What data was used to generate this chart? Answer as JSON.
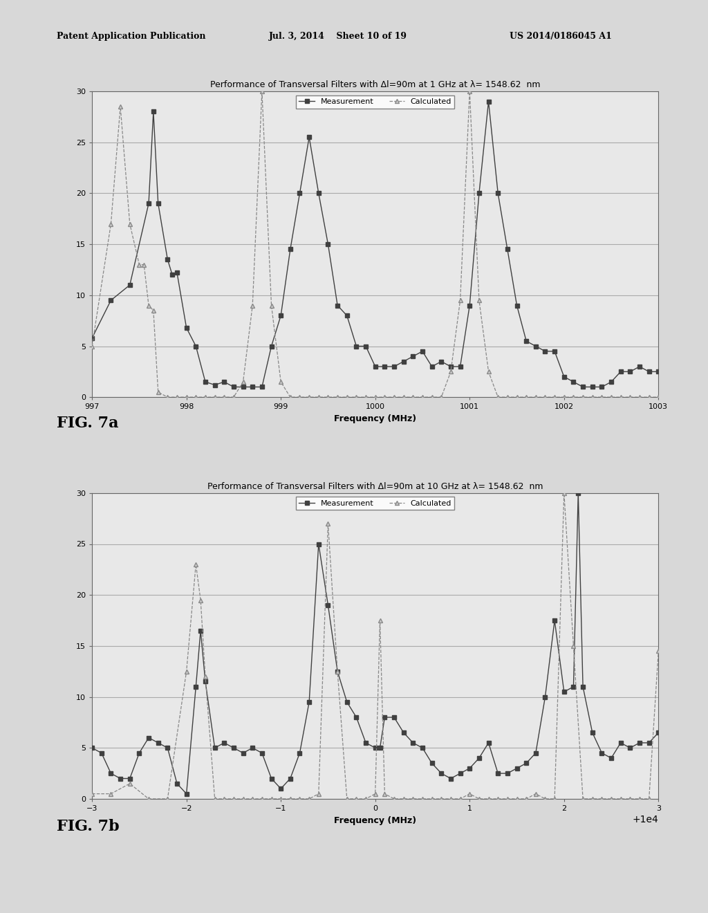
{
  "fig7a": {
    "title": "Performance of Transversal Filters with Δl=90m at 1 GHz at λ= 1548.62  nm",
    "xlabel": "Frequency (MHz)",
    "ylabel": "",
    "xlim": [
      997,
      1003
    ],
    "ylim": [
      0.0,
      30.0
    ],
    "xticks": [
      997,
      998,
      999,
      1000,
      1001,
      1002,
      1003
    ],
    "yticks": [
      0.0,
      5.0,
      10.0,
      15.0,
      20.0,
      25.0,
      30.0
    ],
    "meas_x": [
      997.0,
      997.2,
      997.4,
      997.6,
      997.65,
      997.7,
      997.8,
      997.85,
      997.9,
      998.0,
      998.1,
      998.2,
      998.3,
      998.4,
      998.5,
      998.6,
      998.7,
      998.8,
      998.9,
      999.0,
      999.1,
      999.2,
      999.3,
      999.4,
      999.5,
      999.6,
      999.7,
      999.8,
      999.9,
      1000.0,
      1000.1,
      1000.2,
      1000.3,
      1000.4,
      1000.5,
      1000.6,
      1000.7,
      1000.8,
      1000.9,
      1001.0,
      1001.1,
      1001.2,
      1001.3,
      1001.4,
      1001.5,
      1001.6,
      1001.7,
      1001.8,
      1001.9,
      1002.0,
      1002.1,
      1002.2,
      1002.3,
      1002.4,
      1002.5,
      1002.6,
      1002.7,
      1002.8,
      1002.9,
      1003.0
    ],
    "meas_y": [
      5.8,
      9.5,
      11.0,
      19.0,
      28.0,
      19.0,
      13.5,
      12.0,
      12.2,
      6.8,
      5.0,
      1.5,
      1.2,
      1.5,
      1.0,
      1.0,
      1.0,
      1.0,
      5.0,
      8.0,
      14.5,
      20.0,
      25.5,
      20.0,
      15.0,
      9.0,
      8.0,
      5.0,
      5.0,
      3.0,
      3.0,
      3.0,
      3.5,
      4.0,
      4.5,
      3.0,
      3.5,
      3.0,
      3.0,
      9.0,
      20.0,
      29.0,
      20.0,
      14.5,
      9.0,
      5.5,
      5.0,
      4.5,
      4.5,
      2.0,
      1.5,
      1.0,
      1.0,
      1.0,
      1.5,
      2.5,
      2.5,
      3.0,
      2.5,
      2.5
    ],
    "calc_x": [
      997.0,
      997.2,
      997.3,
      997.4,
      997.5,
      997.55,
      997.6,
      997.65,
      997.7,
      997.8,
      997.9,
      998.0,
      998.1,
      998.2,
      998.3,
      998.4,
      998.5,
      998.6,
      998.7,
      998.8,
      998.9,
      999.0,
      999.1,
      999.2,
      999.3,
      999.4,
      999.5,
      999.6,
      999.7,
      999.8,
      999.9,
      1000.0,
      1000.1,
      1000.2,
      1000.3,
      1000.4,
      1000.5,
      1000.6,
      1000.7,
      1000.8,
      1000.9,
      1001.0,
      1001.1,
      1001.2,
      1001.3,
      1001.4,
      1001.5,
      1001.6,
      1001.7,
      1001.8,
      1001.9,
      1002.0,
      1002.1,
      1002.2,
      1002.3,
      1002.4,
      1002.5,
      1002.6,
      1002.7,
      1002.8,
      1002.9,
      1003.0
    ],
    "calc_y": [
      5.0,
      17.0,
      28.5,
      17.0,
      13.0,
      13.0,
      9.0,
      8.5,
      0.5,
      0.0,
      0.0,
      0.0,
      0.0,
      0.0,
      0.0,
      0.0,
      0.0,
      1.5,
      9.0,
      30.0,
      9.0,
      1.5,
      0.0,
      0.0,
      0.0,
      0.0,
      0.0,
      0.0,
      0.0,
      0.0,
      0.0,
      0.0,
      0.0,
      0.0,
      0.0,
      0.0,
      0.0,
      0.0,
      0.0,
      2.5,
      9.5,
      30.0,
      9.5,
      2.5,
      0.0,
      0.0,
      0.0,
      0.0,
      0.0,
      0.0,
      0.0,
      0.0,
      0.0,
      0.0,
      0.0,
      0.0,
      0.0,
      0.0,
      0.0,
      0.0,
      0.0,
      0.0
    ]
  },
  "fig7b": {
    "title": "Performance of Transversal Filters with Δl=90m at 10 GHz at λ= 1548.62  nm",
    "xlabel": "Frequency (MHz)",
    "ylabel": "",
    "xlim": [
      9997,
      10003
    ],
    "ylim": [
      0.0,
      30.0
    ],
    "xticks": [
      9997,
      9998,
      9999,
      10000,
      10001,
      10002,
      10003
    ],
    "yticks": [
      0.0,
      5.0,
      10.0,
      15.0,
      20.0,
      25.0,
      30.0
    ],
    "meas_x": [
      9997.0,
      9997.1,
      9997.2,
      9997.3,
      9997.4,
      9997.5,
      9997.6,
      9997.7,
      9997.8,
      9997.9,
      9998.0,
      9998.1,
      9998.15,
      9998.2,
      9998.3,
      9998.4,
      9998.5,
      9998.6,
      9998.7,
      9998.8,
      9998.9,
      9999.0,
      9999.1,
      9999.2,
      9999.3,
      9999.4,
      9999.5,
      9999.6,
      9999.7,
      9999.8,
      9999.9,
      10000.0,
      10000.05,
      10000.1,
      10000.2,
      10000.3,
      10000.4,
      10000.5,
      10000.6,
      10000.7,
      10000.8,
      10000.9,
      10001.0,
      10001.1,
      10001.2,
      10001.3,
      10001.4,
      10001.5,
      10001.6,
      10001.7,
      10001.8,
      10001.9,
      10002.0,
      10002.1,
      10002.15,
      10002.2,
      10002.3,
      10002.4,
      10002.5,
      10002.6,
      10002.7,
      10002.8,
      10002.9,
      10003.0
    ],
    "meas_y": [
      5.0,
      4.5,
      2.5,
      2.0,
      2.0,
      4.5,
      6.0,
      5.5,
      5.0,
      1.5,
      0.5,
      11.0,
      16.5,
      11.5,
      5.0,
      5.5,
      5.0,
      4.5,
      5.0,
      4.5,
      2.0,
      1.0,
      2.0,
      4.5,
      9.5,
      25.0,
      19.0,
      12.5,
      9.5,
      8.0,
      5.5,
      5.0,
      5.0,
      8.0,
      8.0,
      6.5,
      5.5,
      5.0,
      3.5,
      2.5,
      2.0,
      2.5,
      3.0,
      4.0,
      5.5,
      2.5,
      2.5,
      3.0,
      3.5,
      4.5,
      10.0,
      17.5,
      10.5,
      11.0,
      30.0,
      11.0,
      6.5,
      4.5,
      4.0,
      5.5,
      5.0,
      5.5,
      5.5,
      6.5
    ],
    "calc_x": [
      9997.0,
      9997.2,
      9997.4,
      9997.6,
      9997.8,
      9998.0,
      9998.1,
      9998.15,
      9998.2,
      9998.3,
      9998.4,
      9998.5,
      9998.6,
      9998.7,
      9998.8,
      9998.9,
      9999.0,
      9999.1,
      9999.2,
      9999.3,
      9999.4,
      9999.5,
      9999.6,
      9999.7,
      9999.8,
      9999.9,
      10000.0,
      10000.05,
      10000.1,
      10000.2,
      10000.3,
      10000.4,
      10000.5,
      10000.6,
      10000.7,
      10000.8,
      10000.9,
      10001.0,
      10001.1,
      10001.2,
      10001.3,
      10001.4,
      10001.5,
      10001.6,
      10001.7,
      10001.8,
      10001.9,
      10002.0,
      10002.1,
      10002.2,
      10002.3,
      10002.4,
      10002.5,
      10002.6,
      10002.7,
      10002.8,
      10002.9,
      10003.0
    ],
    "calc_y": [
      0.5,
      0.5,
      1.5,
      0.0,
      0.0,
      12.5,
      23.0,
      19.5,
      12.0,
      0.0,
      0.0,
      0.0,
      0.0,
      0.0,
      0.0,
      0.0,
      0.0,
      0.0,
      0.0,
      0.0,
      0.5,
      27.0,
      12.5,
      0.0,
      0.0,
      0.0,
      0.5,
      17.5,
      0.5,
      0.0,
      0.0,
      0.0,
      0.0,
      0.0,
      0.0,
      0.0,
      0.0,
      0.5,
      0.0,
      0.0,
      0.0,
      0.0,
      0.0,
      0.0,
      0.5,
      0.0,
      0.0,
      30.0,
      15.0,
      0.0,
      0.0,
      0.0,
      0.0,
      0.0,
      0.0,
      0.0,
      0.0,
      14.5
    ]
  },
  "header_left": "Patent Application Publication",
  "header_center": "Jul. 3, 2014    Sheet 10 of 19",
  "header_right": "US 2014/0186045 A1",
  "fig7a_label": "FIG. 7a",
  "fig7b_label": "FIG. 7b",
  "line_color_meas": "#404040",
  "line_color_calc": "#888888",
  "marker_meas": "s",
  "marker_calc": "^",
  "bg_color": "#e8e8e8",
  "plot_bg": "#f0f0f0"
}
